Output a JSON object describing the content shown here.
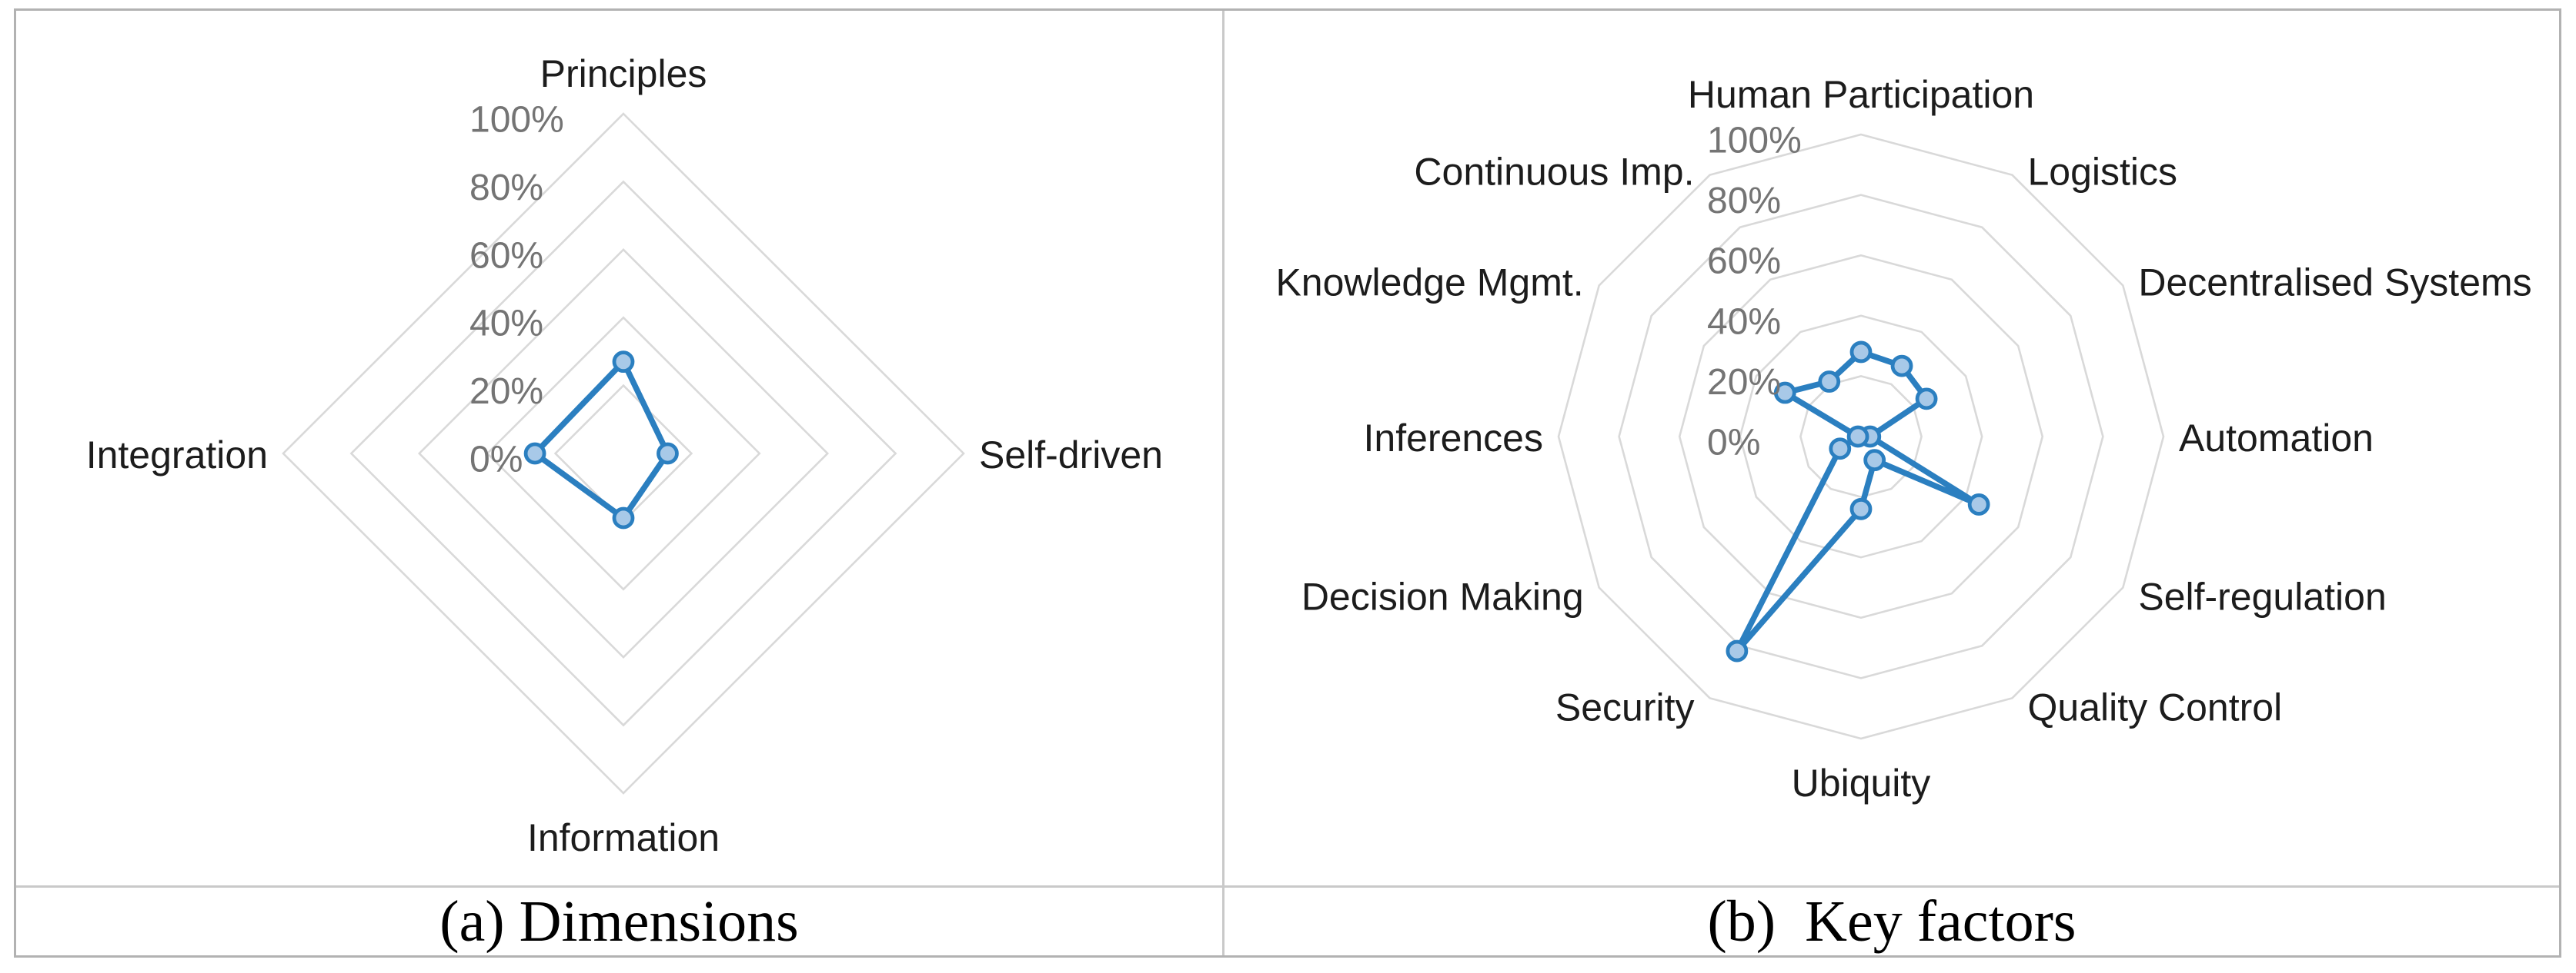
{
  "figure": {
    "type": "two-panel radar figure",
    "background": "#ffffff"
  },
  "colors": {
    "series_line": "#2b7fc0",
    "marker_fill": "#a8c9e8",
    "gridline": "#d9d9d9",
    "tick_text": "#747474",
    "axis_label_text": "#1c1c1c",
    "outer_border": "#b2b2b2",
    "inner_rule": "#c9c9c9"
  },
  "chart_data": [
    {
      "type": "radar",
      "panel": "a",
      "caption": "(a) Dimensions",
      "categories": [
        "Principles",
        "Self-driven",
        "Information",
        "Integration"
      ],
      "values": [
        27,
        13,
        19,
        26
      ],
      "unit": "%",
      "rlim": [
        0,
        100
      ],
      "tick_step": 20,
      "tick_labels": [
        "0%",
        "20%",
        "40%",
        "60%",
        "80%",
        "100%"
      ],
      "grid": true,
      "spokes": false,
      "legend": false
    },
    {
      "type": "radar",
      "panel": "b",
      "caption": "(b)  Key factors",
      "categories": [
        "Human Participation",
        "Logistics",
        "Decentralised Systems",
        "Automation",
        "Self-regulation",
        "Quality Control",
        "Ubiquity",
        "Security",
        "Decision Making",
        "Inferences",
        "Knowledge Mgmt.",
        "Continuous Imp."
      ],
      "values": [
        28,
        27,
        25,
        3,
        45,
        9,
        24,
        82,
        8,
        1,
        29,
        21
      ],
      "unit": "%",
      "rlim": [
        0,
        100
      ],
      "tick_step": 20,
      "tick_labels": [
        "0%",
        "20%",
        "40%",
        "60%",
        "80%",
        "100%"
      ],
      "grid": true,
      "spokes": false,
      "legend": false
    }
  ]
}
